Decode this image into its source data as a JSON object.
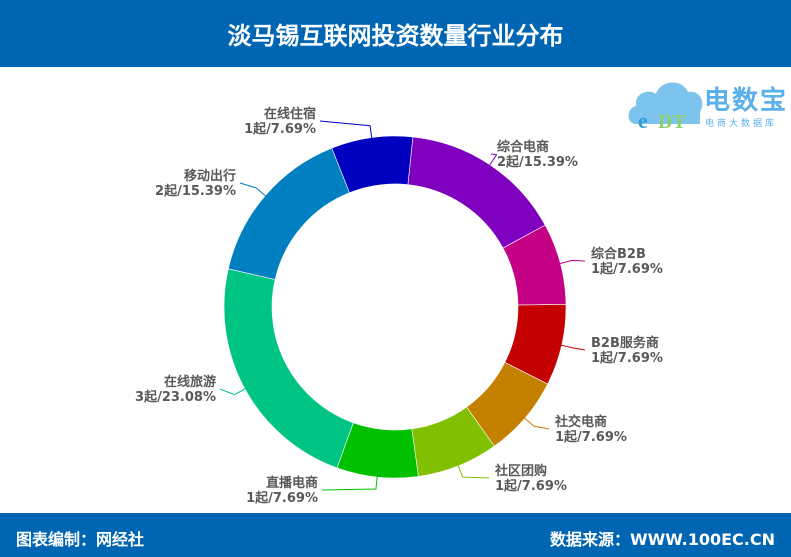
{
  "header": {
    "title": "淡马锡互联网投资数量行业分布"
  },
  "logo": {
    "brand": "电数宝",
    "subtitle": "电商大数据库",
    "mark": "eDT"
  },
  "footer": {
    "left": "图表编制：网经社",
    "right": "数据来源：WWW.100EC.CN"
  },
  "colors": {
    "header_bg": "#0066b3",
    "label_text": "#595959"
  },
  "chart_data": {
    "type": "pie",
    "variant": "donut",
    "title": "淡马锡互联网投资数量行业分布",
    "unit": "起",
    "start_angle_deg_clockwise_from_top": 6,
    "slices": [
      {
        "name": "综合电商",
        "value": 2,
        "percent": 15.39,
        "label": "2起/15.39%",
        "color": "#8000c0"
      },
      {
        "name": "综合B2B",
        "value": 1,
        "percent": 7.69,
        "label": "1起/7.69%",
        "color": "#c40084"
      },
      {
        "name": "B2B服务商",
        "value": 1,
        "percent": 7.69,
        "label": "1起/7.69%",
        "color": "#c40000"
      },
      {
        "name": "社交电商",
        "value": 1,
        "percent": 7.69,
        "label": "1起/7.69%",
        "color": "#c48000"
      },
      {
        "name": "社区团购",
        "value": 1,
        "percent": 7.69,
        "label": "1起/7.69%",
        "color": "#80c000"
      },
      {
        "name": "直播电商",
        "value": 1,
        "percent": 7.69,
        "label": "1起/7.69%",
        "color": "#00c000"
      },
      {
        "name": "在线旅游",
        "value": 3,
        "percent": 23.08,
        "label": "3起/23.08%",
        "color": "#00c484"
      },
      {
        "name": "移动出行",
        "value": 2,
        "percent": 15.39,
        "label": "2起/15.39%",
        "color": "#0080c0"
      },
      {
        "name": "在线住宿",
        "value": 1,
        "percent": 7.69,
        "label": "1起/7.69%",
        "color": "#0000c0"
      }
    ],
    "legend": "none (leader-line labels)"
  }
}
